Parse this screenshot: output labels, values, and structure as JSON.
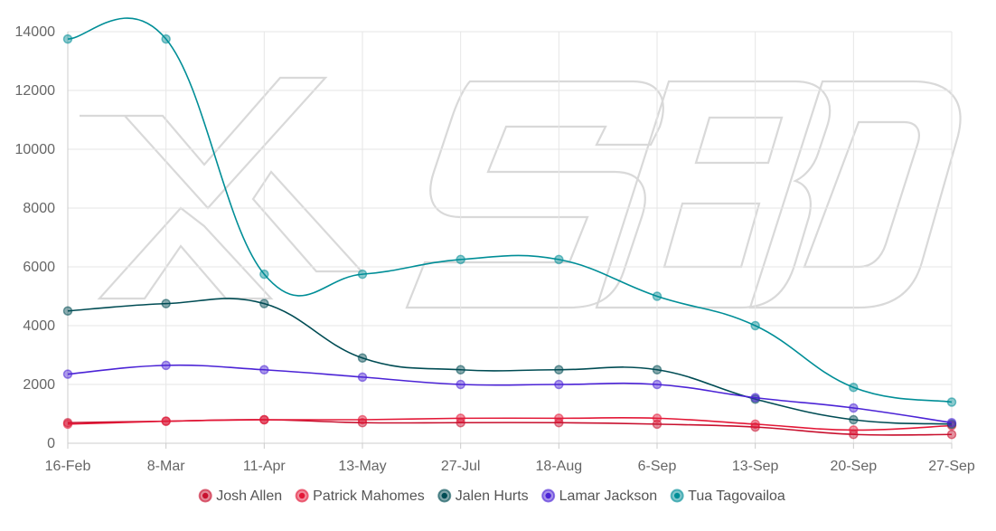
{
  "chart_data": {
    "type": "line",
    "categories": [
      "16-Feb",
      "8-Mar",
      "11-Apr",
      "13-May",
      "27-Jul",
      "18-Aug",
      "6-Sep",
      "13-Sep",
      "20-Sep",
      "27-Sep"
    ],
    "ylim": [
      0,
      14000
    ],
    "yticks": [
      0,
      2000,
      4000,
      6000,
      8000,
      10000,
      12000,
      14000
    ],
    "grid": true,
    "legend_position": "bottom",
    "watermark": "XSBD",
    "series": [
      {
        "name": "Josh Allen",
        "color": "#c8102e",
        "values": [
          700,
          750,
          800,
          700,
          700,
          700,
          650,
          550,
          300,
          300
        ]
      },
      {
        "name": "Patrick Mahomes",
        "color": "#e31837",
        "values": [
          650,
          750,
          800,
          800,
          850,
          850,
          850,
          650,
          450,
          600
        ]
      },
      {
        "name": "Jalen Hurts",
        "color": "#004c54",
        "values": [
          4500,
          4750,
          4750,
          2900,
          2500,
          2500,
          2500,
          1500,
          800,
          650
        ]
      },
      {
        "name": "Lamar Jackson",
        "color": "#4b23d6",
        "values": [
          2350,
          2650,
          2500,
          2250,
          2000,
          2000,
          2000,
          1550,
          1200,
          700
        ]
      },
      {
        "name": "Tua Tagovailoa",
        "color": "#008e97",
        "values": [
          13750,
          13750,
          5750,
          5750,
          6250,
          6250,
          5000,
          4000,
          1900,
          1400
        ]
      }
    ]
  }
}
